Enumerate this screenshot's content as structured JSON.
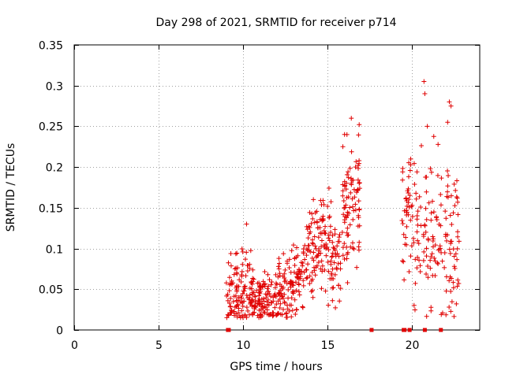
{
  "chart_data": {
    "type": "scatter",
    "title": "Day 298 of 2021, SRMTID for receiver p714",
    "xlabel": "GPS time / hours",
    "ylabel": "SRMTID / TECUs",
    "xlim": [
      0,
      24
    ],
    "ylim": [
      0,
      0.35
    ],
    "xticks": [
      0,
      5,
      10,
      15,
      20
    ],
    "xtick_labels": [
      "0",
      "5",
      "10",
      "15",
      "20"
    ],
    "yticks": [
      0,
      0.05,
      0.1,
      0.15,
      0.2,
      0.25,
      0.3,
      0.35
    ],
    "ytick_labels": [
      "0",
      "0.05",
      "0.1",
      "0.15",
      "0.2",
      "0.25",
      "0.3",
      "0.35"
    ],
    "grid": true,
    "legend": "none",
    "marker": "plus",
    "color": "#e00000",
    "series": [
      {
        "name": "SRMTID",
        "segments": [
          {
            "x_start": 9.0,
            "x_end": 10.5,
            "trend": [
              0.04,
              0.06
            ],
            "spread": 0.025,
            "n": 110,
            "seed": 11
          },
          {
            "x_start": 10.5,
            "x_end": 12.0,
            "trend": [
              0.04,
              0.035
            ],
            "spread": 0.018,
            "n": 120,
            "seed": 12
          },
          {
            "x_start": 12.0,
            "x_end": 13.5,
            "trend": [
              0.04,
              0.07
            ],
            "spread": 0.02,
            "n": 110,
            "seed": 13
          },
          {
            "x_start": 13.5,
            "x_end": 15.0,
            "trend": [
              0.08,
              0.12
            ],
            "spread": 0.03,
            "n": 110,
            "seed": 14
          },
          {
            "x_start": 15.0,
            "x_end": 15.8,
            "trend": [
              0.1,
              0.08
            ],
            "spread": 0.03,
            "n": 55,
            "seed": 15
          },
          {
            "x_start": 15.8,
            "x_end": 16.9,
            "trend": [
              0.14,
              0.16
            ],
            "spread": 0.04,
            "n": 90,
            "seed": 16
          },
          {
            "x_start": 19.4,
            "x_end": 21.0,
            "trend": [
              0.14,
              0.12
            ],
            "spread": 0.045,
            "n": 90,
            "seed": 17
          },
          {
            "x_start": 21.0,
            "x_end": 22.8,
            "trend": [
              0.12,
              0.1
            ],
            "spread": 0.05,
            "n": 100,
            "seed": 18
          }
        ],
        "points": [
          {
            "x": 16.4,
            "y": 0.26
          },
          {
            "x": 16.0,
            "y": 0.24
          },
          {
            "x": 20.7,
            "y": 0.305
          },
          {
            "x": 20.75,
            "y": 0.29
          },
          {
            "x": 22.2,
            "y": 0.28
          },
          {
            "x": 22.3,
            "y": 0.275
          },
          {
            "x": 10.2,
            "y": 0.13
          },
          {
            "x": 15.9,
            "y": 0.225
          },
          {
            "x": 20.9,
            "y": 0.25
          },
          {
            "x": 22.1,
            "y": 0.255
          }
        ],
        "zero_points": [
          9.1,
          9.15,
          17.6,
          19.5,
          19.55,
          19.85,
          20.75,
          21.7
        ]
      }
    ]
  }
}
